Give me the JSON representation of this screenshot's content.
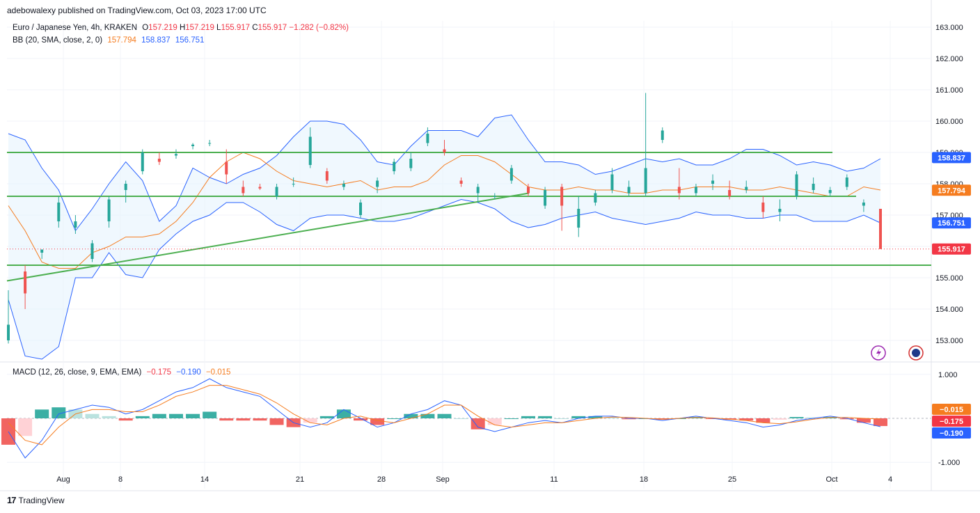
{
  "header": {
    "published_by": "adebowalexy published on TradingView.com, Oct 03, 2023 17:00 UTC"
  },
  "legend": {
    "symbol": "Euro / Japanese Yen, 4h, KRAKEN",
    "open_label": "O",
    "open": "157.219",
    "high_label": "H",
    "high": "157.219",
    "low_label": "L",
    "low": "155.917",
    "close_label": "C",
    "close": "155.917",
    "change": "−1.282 (−0.82%)",
    "bb_label": "BB (20, SMA, close, 2, 0)",
    "bb_basis": "157.794",
    "bb_upper": "158.837",
    "bb_lower": "156.751",
    "macd_label": "MACD (12, 26, close, 9, EMA, EMA)",
    "macd_hist": "−0.175",
    "macd_line": "−0.190",
    "macd_signal": "−0.015"
  },
  "footer": {
    "brand": "TradingView",
    "logo": "tv-logo-icon"
  },
  "colors": {
    "up": "#26a69a",
    "down": "#ef5350",
    "bb_band": "#2962ff",
    "bb_basis": "#f57c1f",
    "bb_fill": "#e3f2fd",
    "trend": "#4caf50",
    "macd": "#2962ff",
    "signal": "#f57c1f",
    "hist_up_strong": "#26a69a",
    "hist_up_weak": "#b2dfdb",
    "hist_dn_strong": "#ef5350",
    "hist_dn_weak": "#ffcdd2"
  },
  "chart_data": [
    {
      "type": "candlestick",
      "title": "",
      "price_ylim": [
        152.4,
        163.2
      ],
      "y_ticks": [
        "163.000",
        "162.000",
        "161.000",
        "160.000",
        "159.000",
        "158.000",
        "157.000",
        "156.000",
        "155.000",
        "154.000",
        "153.000"
      ],
      "x_ticks": [
        "Aug",
        "8",
        "14",
        "21",
        "28",
        "Sep",
        "11",
        "18",
        "25",
        "Oct",
        "4"
      ],
      "price_badges": [
        {
          "value": "158.837",
          "color": "#2962ff"
        },
        {
          "value": "157.794",
          "color": "#f57c1f"
        },
        {
          "value": "156.751",
          "color": "#2962ff"
        },
        {
          "value": "155.917",
          "color": "#f23645"
        }
      ],
      "bb_upper": [
        159.6,
        159.4,
        158.5,
        157.8,
        156.5,
        157.2,
        158.0,
        158.7,
        158.1,
        156.8,
        157.3,
        158.5,
        158.2,
        158.0,
        158.3,
        158.5,
        158.9,
        159.5,
        160.0,
        160.0,
        159.9,
        159.4,
        158.7,
        158.6,
        159.2,
        159.7,
        159.7,
        159.7,
        159.5,
        160.1,
        160.2,
        159.4,
        158.7,
        158.7,
        158.6,
        158.3,
        158.4,
        158.6,
        158.8,
        158.7,
        158.8,
        158.6,
        158.6,
        158.8,
        159.1,
        159.1,
        158.9,
        158.6,
        158.7,
        158.6,
        158.4,
        158.5,
        158.8
      ],
      "bb_basis": [
        157.3,
        156.5,
        155.5,
        155.3,
        155.3,
        155.8,
        156.0,
        156.3,
        156.3,
        156.4,
        156.8,
        157.4,
        158.2,
        158.7,
        159.0,
        158.8,
        158.4,
        158.1,
        158.0,
        157.9,
        158.0,
        158.1,
        157.8,
        157.9,
        157.9,
        158.1,
        158.6,
        158.9,
        158.9,
        158.7,
        158.3,
        157.9,
        157.8,
        157.8,
        157.9,
        157.8,
        157.8,
        157.7,
        157.7,
        157.8,
        157.8,
        157.9,
        157.9,
        157.9,
        157.8,
        157.8,
        157.9,
        157.8,
        157.7,
        157.6,
        157.6,
        157.9,
        157.8
      ],
      "bb_lower": [
        154.3,
        152.5,
        152.4,
        152.8,
        155.0,
        155.0,
        155.8,
        155.1,
        155.0,
        155.9,
        156.4,
        156.8,
        157.0,
        157.4,
        157.4,
        157.1,
        156.7,
        156.5,
        156.9,
        157.0,
        157.0,
        156.9,
        156.8,
        156.8,
        156.9,
        157.1,
        157.3,
        157.5,
        157.4,
        157.2,
        156.8,
        156.6,
        156.7,
        156.9,
        157.0,
        157.1,
        156.9,
        156.8,
        156.7,
        156.8,
        156.9,
        157.1,
        157.0,
        157.0,
        156.9,
        156.9,
        157.0,
        157.0,
        156.8,
        156.8,
        156.8,
        157.0,
        156.75
      ],
      "candles_ohlc": [
        [
          153.0,
          154.6,
          152.9,
          153.5
        ],
        [
          155.2,
          155.4,
          154.0,
          154.5
        ],
        [
          155.8,
          155.9,
          155.6,
          155.9
        ],
        [
          156.8,
          157.6,
          156.6,
          157.4
        ],
        [
          156.6,
          157.0,
          156.4,
          156.8
        ],
        [
          155.6,
          156.2,
          155.5,
          156.1
        ],
        [
          156.8,
          157.6,
          156.6,
          157.5
        ],
        [
          157.8,
          158.1,
          157.4,
          158.0
        ],
        [
          158.4,
          159.1,
          158.3,
          159.0
        ],
        [
          158.8,
          159.0,
          158.6,
          158.7
        ],
        [
          158.9,
          159.1,
          158.8,
          158.95
        ],
        [
          159.2,
          159.3,
          159.1,
          159.25
        ],
        [
          159.3,
          159.4,
          159.2,
          159.3
        ],
        [
          158.7,
          159.1,
          158.0,
          158.3
        ],
        [
          157.9,
          158.1,
          157.6,
          157.7
        ],
        [
          157.9,
          158.0,
          157.8,
          157.85
        ],
        [
          157.6,
          158.0,
          157.5,
          157.9
        ],
        [
          158.0,
          158.2,
          157.9,
          158.0
        ],
        [
          158.6,
          159.8,
          158.5,
          159.5
        ],
        [
          158.4,
          158.5,
          158.0,
          158.1
        ],
        [
          157.9,
          158.1,
          157.8,
          158.0
        ],
        [
          157.0,
          157.5,
          156.9,
          157.4
        ],
        [
          157.9,
          158.2,
          157.7,
          158.1
        ],
        [
          158.4,
          158.8,
          158.3,
          158.7
        ],
        [
          158.5,
          159.0,
          158.4,
          158.8
        ],
        [
          159.3,
          159.8,
          159.2,
          159.6
        ],
        [
          159.1,
          159.4,
          158.9,
          159.0
        ],
        [
          158.1,
          158.2,
          157.9,
          158.0
        ],
        [
          157.7,
          158.0,
          157.4,
          157.9
        ],
        [
          157.6,
          157.7,
          157.5,
          157.6
        ],
        [
          158.1,
          158.6,
          158.0,
          158.5
        ],
        [
          157.9,
          158.0,
          157.6,
          157.7
        ],
        [
          157.3,
          157.9,
          157.2,
          157.8
        ],
        [
          157.9,
          158.0,
          156.5,
          157.3
        ],
        [
          156.6,
          157.6,
          156.3,
          157.2
        ],
        [
          157.4,
          157.8,
          157.3,
          157.7
        ],
        [
          157.8,
          158.5,
          157.7,
          158.3
        ],
        [
          157.7,
          158.1,
          157.6,
          157.9
        ],
        [
          157.7,
          160.9,
          157.6,
          158.5
        ],
        [
          159.4,
          159.8,
          159.3,
          159.7
        ],
        [
          157.9,
          158.5,
          157.5,
          157.7
        ],
        [
          157.7,
          158.0,
          157.6,
          157.9
        ],
        [
          158.0,
          158.3,
          157.8,
          158.1
        ],
        [
          157.8,
          158.1,
          157.5,
          157.6
        ],
        [
          157.8,
          158.1,
          157.7,
          157.9
        ],
        [
          157.4,
          157.6,
          156.9,
          157.1
        ],
        [
          157.1,
          157.5,
          156.8,
          157.2
        ],
        [
          157.6,
          158.4,
          157.5,
          158.3
        ],
        [
          157.8,
          158.2,
          157.7,
          158.0
        ],
        [
          157.7,
          157.9,
          157.6,
          157.8
        ],
        [
          157.9,
          158.3,
          157.8,
          158.2
        ],
        [
          157.3,
          157.5,
          157.1,
          157.4
        ],
        [
          157.2,
          157.2,
          155.917,
          155.917
        ]
      ],
      "trendlines": [
        {
          "from": [
            "Jul 31",
            154.9
          ],
          "to": [
            "Sep 07",
            157.7
          ],
          "label": ""
        },
        {
          "level": 159.0,
          "label": ""
        },
        {
          "level": 157.6,
          "label": ""
        },
        {
          "level": 155.4,
          "label": ""
        }
      ]
    },
    {
      "type": "macd",
      "title": "",
      "ylim": [
        -1.25,
        1.25
      ],
      "y_ticks": [
        "1.000",
        "-1.000"
      ],
      "price_badges": [
        {
          "value": "−0.015",
          "color": "#f57c1f"
        },
        {
          "value": "−0.175",
          "color": "#f23645"
        },
        {
          "value": "−0.190",
          "color": "#2962ff"
        }
      ],
      "macd_line": [
        -0.3,
        -0.9,
        -0.5,
        0.1,
        0.2,
        0.3,
        0.25,
        0.1,
        0.2,
        0.4,
        0.6,
        0.7,
        0.9,
        0.7,
        0.6,
        0.5,
        0.2,
        -0.1,
        -0.2,
        -0.1,
        0.2,
        0.0,
        -0.2,
        -0.1,
        0.1,
        0.2,
        0.4,
        0.3,
        -0.2,
        -0.3,
        -0.2,
        -0.1,
        -0.05,
        -0.1,
        0.0,
        0.05,
        0.05,
        0.0,
        0.0,
        -0.05,
        0.0,
        0.05,
        0.0,
        -0.05,
        -0.1,
        -0.2,
        -0.15,
        -0.05,
        0.0,
        0.05,
        0.0,
        -0.1,
        -0.19
      ],
      "signal_line": [
        -0.1,
        -0.5,
        -0.6,
        -0.2,
        0.1,
        0.2,
        0.2,
        0.15,
        0.15,
        0.3,
        0.5,
        0.6,
        0.75,
        0.75,
        0.65,
        0.55,
        0.35,
        0.1,
        -0.1,
        -0.15,
        0.0,
        0.05,
        -0.05,
        -0.1,
        0.0,
        0.1,
        0.3,
        0.3,
        0.05,
        -0.15,
        -0.2,
        -0.15,
        -0.1,
        -0.1,
        -0.05,
        0.0,
        0.03,
        0.02,
        0.0,
        -0.02,
        0.0,
        0.02,
        0.01,
        -0.02,
        -0.05,
        -0.1,
        -0.12,
        -0.08,
        -0.02,
        0.02,
        0.02,
        0.0,
        -0.015
      ],
      "histogram": [
        -0.6,
        -0.4,
        0.2,
        0.25,
        0.2,
        0.1,
        0.05,
        -0.05,
        0.05,
        0.1,
        0.1,
        0.1,
        0.15,
        -0.05,
        -0.05,
        -0.05,
        -0.15,
        -0.2,
        -0.1,
        0.05,
        0.2,
        -0.05,
        -0.15,
        0.0,
        0.1,
        0.1,
        0.1,
        0.0,
        -0.25,
        -0.15,
        0.0,
        0.05,
        0.05,
        0.0,
        0.05,
        0.05,
        0.02,
        -0.02,
        0.0,
        -0.03,
        0.0,
        0.03,
        -0.01,
        -0.03,
        -0.05,
        -0.1,
        -0.03,
        0.03,
        0.02,
        0.03,
        -0.02,
        -0.1,
        -0.175
      ]
    }
  ]
}
